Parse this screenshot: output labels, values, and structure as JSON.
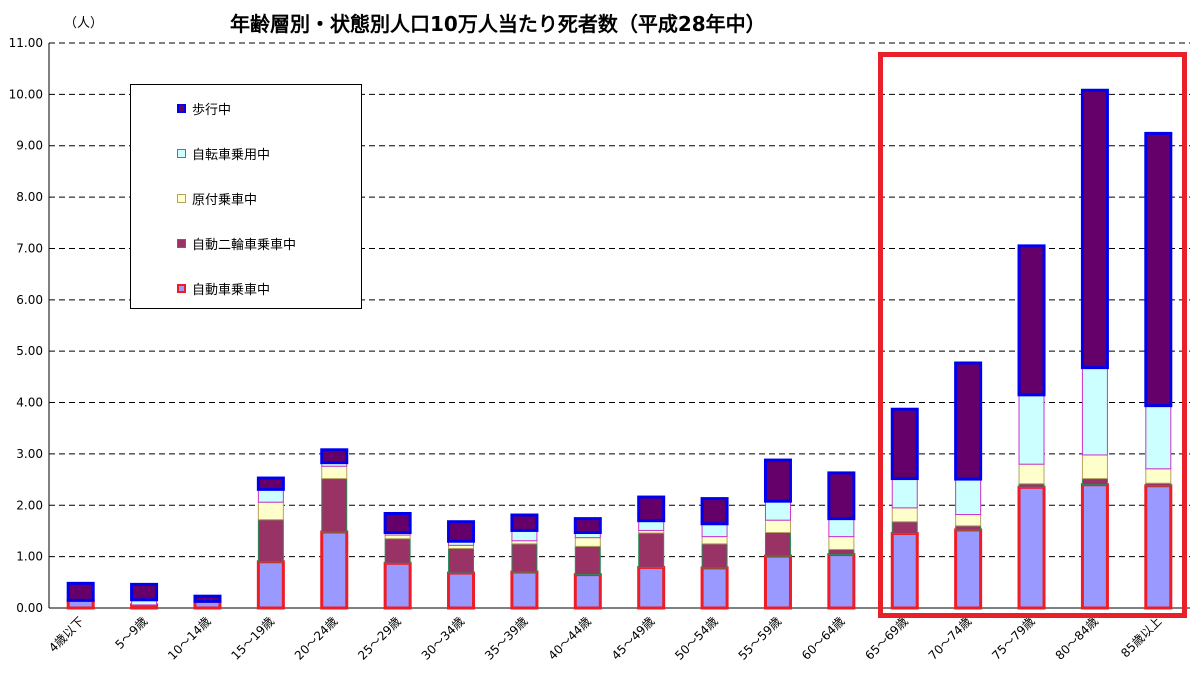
{
  "title": "年齢層別・状態別人口10万人当たり死者数（平成28年中）",
  "unit_label": "（人）",
  "colors": {
    "walking": "#65006b",
    "walking_border": "#0000ee",
    "bicycle": "#ccffff",
    "bicycle_border": "#cc33cc",
    "moped": "#ffffcc",
    "moped_border": "#b8a060",
    "motorcycle": "#993366",
    "motorcycle_border": "#2e8b57",
    "car": "#9999ff",
    "car_border": "#ee1c25",
    "highlight": "#e8202a"
  },
  "legend": [
    {
      "key": "walking",
      "label": "歩行中"
    },
    {
      "key": "bicycle",
      "label": "自転車乗用中"
    },
    {
      "key": "moped",
      "label": "原付乗車中"
    },
    {
      "key": "motorcycle",
      "label": "自動二輪車乗車中"
    },
    {
      "key": "car",
      "label": "自動車乗車中"
    }
  ],
  "chart_data": {
    "type": "bar",
    "stacked": true,
    "title": "年齢層別・状態別人口10万人当たり死者数（平成28年中）",
    "ylabel": "（人）",
    "ylim": [
      0,
      11
    ],
    "yticks": [
      "0.00",
      "1.00",
      "2.00",
      "3.00",
      "4.00",
      "5.00",
      "6.00",
      "7.00",
      "8.00",
      "9.00",
      "10.00",
      "11.00"
    ],
    "grid": true,
    "legend_position": "top-left",
    "categories": [
      "4歳以下",
      "5～9歳",
      "10～14歳",
      "15～19歳",
      "20～24歳",
      "25～29歳",
      "30～34歳",
      "35～39歳",
      "40～44歳",
      "45～49歳",
      "50～54歳",
      "55～59歳",
      "60～64歳",
      "65～69歳",
      "70～74歳",
      "75～79歳",
      "80～84歳",
      "85歳以上"
    ],
    "series": [
      {
        "key": "car",
        "name": "自動車乗車中",
        "values": [
          0.15,
          0.06,
          0.13,
          0.9,
          1.48,
          0.87,
          0.68,
          0.7,
          0.65,
          0.79,
          0.78,
          1.01,
          1.04,
          1.45,
          1.52,
          2.35,
          2.4,
          2.38
        ]
      },
      {
        "key": "motorcycle",
        "name": "自動二輪車乗車中",
        "values": [
          0,
          0,
          0,
          0.82,
          1.04,
          0.48,
          0.48,
          0.55,
          0.55,
          0.67,
          0.47,
          0.46,
          0.1,
          0.23,
          0.08,
          0.07,
          0.12,
          0.05
        ]
      },
      {
        "key": "moped",
        "name": "原付乗車中",
        "values": [
          0,
          0,
          0,
          0.34,
          0.24,
          0.07,
          0.06,
          0.06,
          0.17,
          0.05,
          0.14,
          0.24,
          0.25,
          0.27,
          0.22,
          0.38,
          0.46,
          0.28
        ]
      },
      {
        "key": "bicycle",
        "name": "自転車乗用中",
        "values": [
          0,
          0.1,
          0,
          0.25,
          0.07,
          0.05,
          0.08,
          0.2,
          0.1,
          0.19,
          0.25,
          0.37,
          0.35,
          0.57,
          0.69,
          1.35,
          1.7,
          1.23
        ]
      },
      {
        "key": "walking",
        "name": "歩行中",
        "values": [
          0.33,
          0.3,
          0.1,
          0.22,
          0.25,
          0.37,
          0.38,
          0.3,
          0.27,
          0.46,
          0.49,
          0.8,
          0.89,
          1.35,
          2.26,
          2.9,
          5.4,
          5.3
        ]
      }
    ],
    "highlighted_categories": [
      "65～69歳",
      "70～74歳",
      "75～79歳",
      "80～84歳",
      "85歳以上"
    ]
  }
}
